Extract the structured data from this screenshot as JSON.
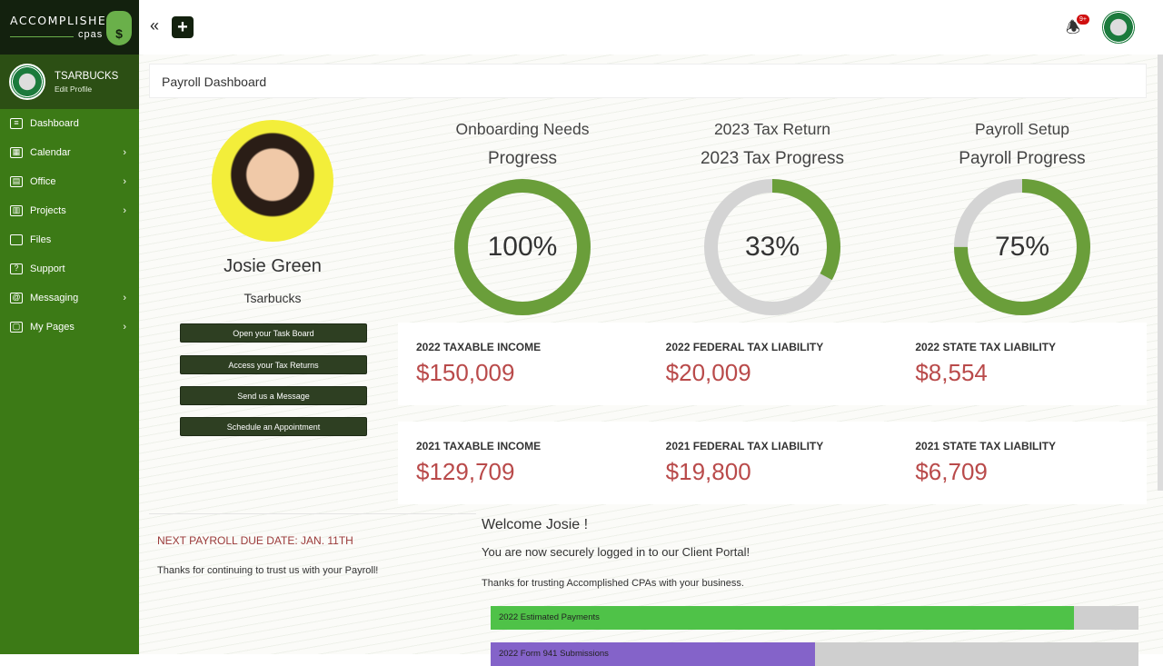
{
  "brand": {
    "name": "ACCOMPLISHED",
    "sub": "cpas"
  },
  "user": {
    "name": "TSARBUCKS",
    "edit": "Edit Profile"
  },
  "nav": [
    {
      "label": "Dashboard",
      "icon": "menu-icon",
      "chevron": false
    },
    {
      "label": "Calendar",
      "icon": "calendar-icon",
      "chevron": true
    },
    {
      "label": "Office",
      "icon": "office-icon",
      "chevron": true
    },
    {
      "label": "Projects",
      "icon": "projects-icon",
      "chevron": true
    },
    {
      "label": "Files",
      "icon": "folder-icon",
      "chevron": false
    },
    {
      "label": "Support",
      "icon": "support-icon",
      "chevron": false
    },
    {
      "label": "Messaging",
      "icon": "at-icon",
      "chevron": true
    },
    {
      "label": "My Pages",
      "icon": "pages-icon",
      "chevron": true
    }
  ],
  "topbar": {
    "collapse": "«",
    "add": "+",
    "notif_badge": "9+"
  },
  "page_title": "Payroll Dashboard",
  "client": {
    "name": "Josie Green",
    "company": "Tsarbucks"
  },
  "actions": [
    "Open your Task Board",
    "Access your Tax Returns",
    "Send us a Message",
    "Schedule an Appointment"
  ],
  "progress": [
    {
      "title": "Onboarding Needs",
      "subtitle": "Progress",
      "percent_label": "100%",
      "value": 100
    },
    {
      "title": "2023 Tax Return",
      "subtitle": "2023 Tax Progress",
      "percent_label": "33%",
      "value": 33
    },
    {
      "title": "Payroll Setup",
      "subtitle": "Payroll Progress",
      "percent_label": "75%",
      "value": 75
    }
  ],
  "stats": [
    [
      {
        "label": "2022 TAXABLE INCOME",
        "value": "$150,009"
      },
      {
        "label": "2022 FEDERAL TAX LIABILITY",
        "value": "$20,009"
      },
      {
        "label": "2022 STATE TAX LIABILITY",
        "value": "$8,554"
      }
    ],
    [
      {
        "label": "2021 TAXABLE INCOME",
        "value": "$129,709"
      },
      {
        "label": "2021 FEDERAL TAX LIABILITY",
        "value": "$19,800"
      },
      {
        "label": "2021 STATE TAX LIABILITY",
        "value": "$6,709"
      }
    ]
  ],
  "payroll": {
    "due": "NEXT PAYROLL DUE DATE: JAN. 11TH",
    "thanks": "Thanks for continuing to trust us with your Payroll!"
  },
  "welcome": {
    "title": "Welcome Josie !",
    "secure": "You are now securely logged in to our Client Portal!",
    "thanks": "Thanks for trusting Accomplished CPAs with your business."
  },
  "bars": [
    {
      "label": "2022 Estimated Payments",
      "percent": 90,
      "color": "#4fc248"
    },
    {
      "label": "2022 Form 941 Submissions",
      "percent": 50,
      "color": "#8463c9"
    }
  ],
  "colors": {
    "donut_fill": "#6a9e3a",
    "donut_track": "#d4d4d4",
    "sidebar": "#3c7a16",
    "stat_value": "#b94a4a"
  }
}
